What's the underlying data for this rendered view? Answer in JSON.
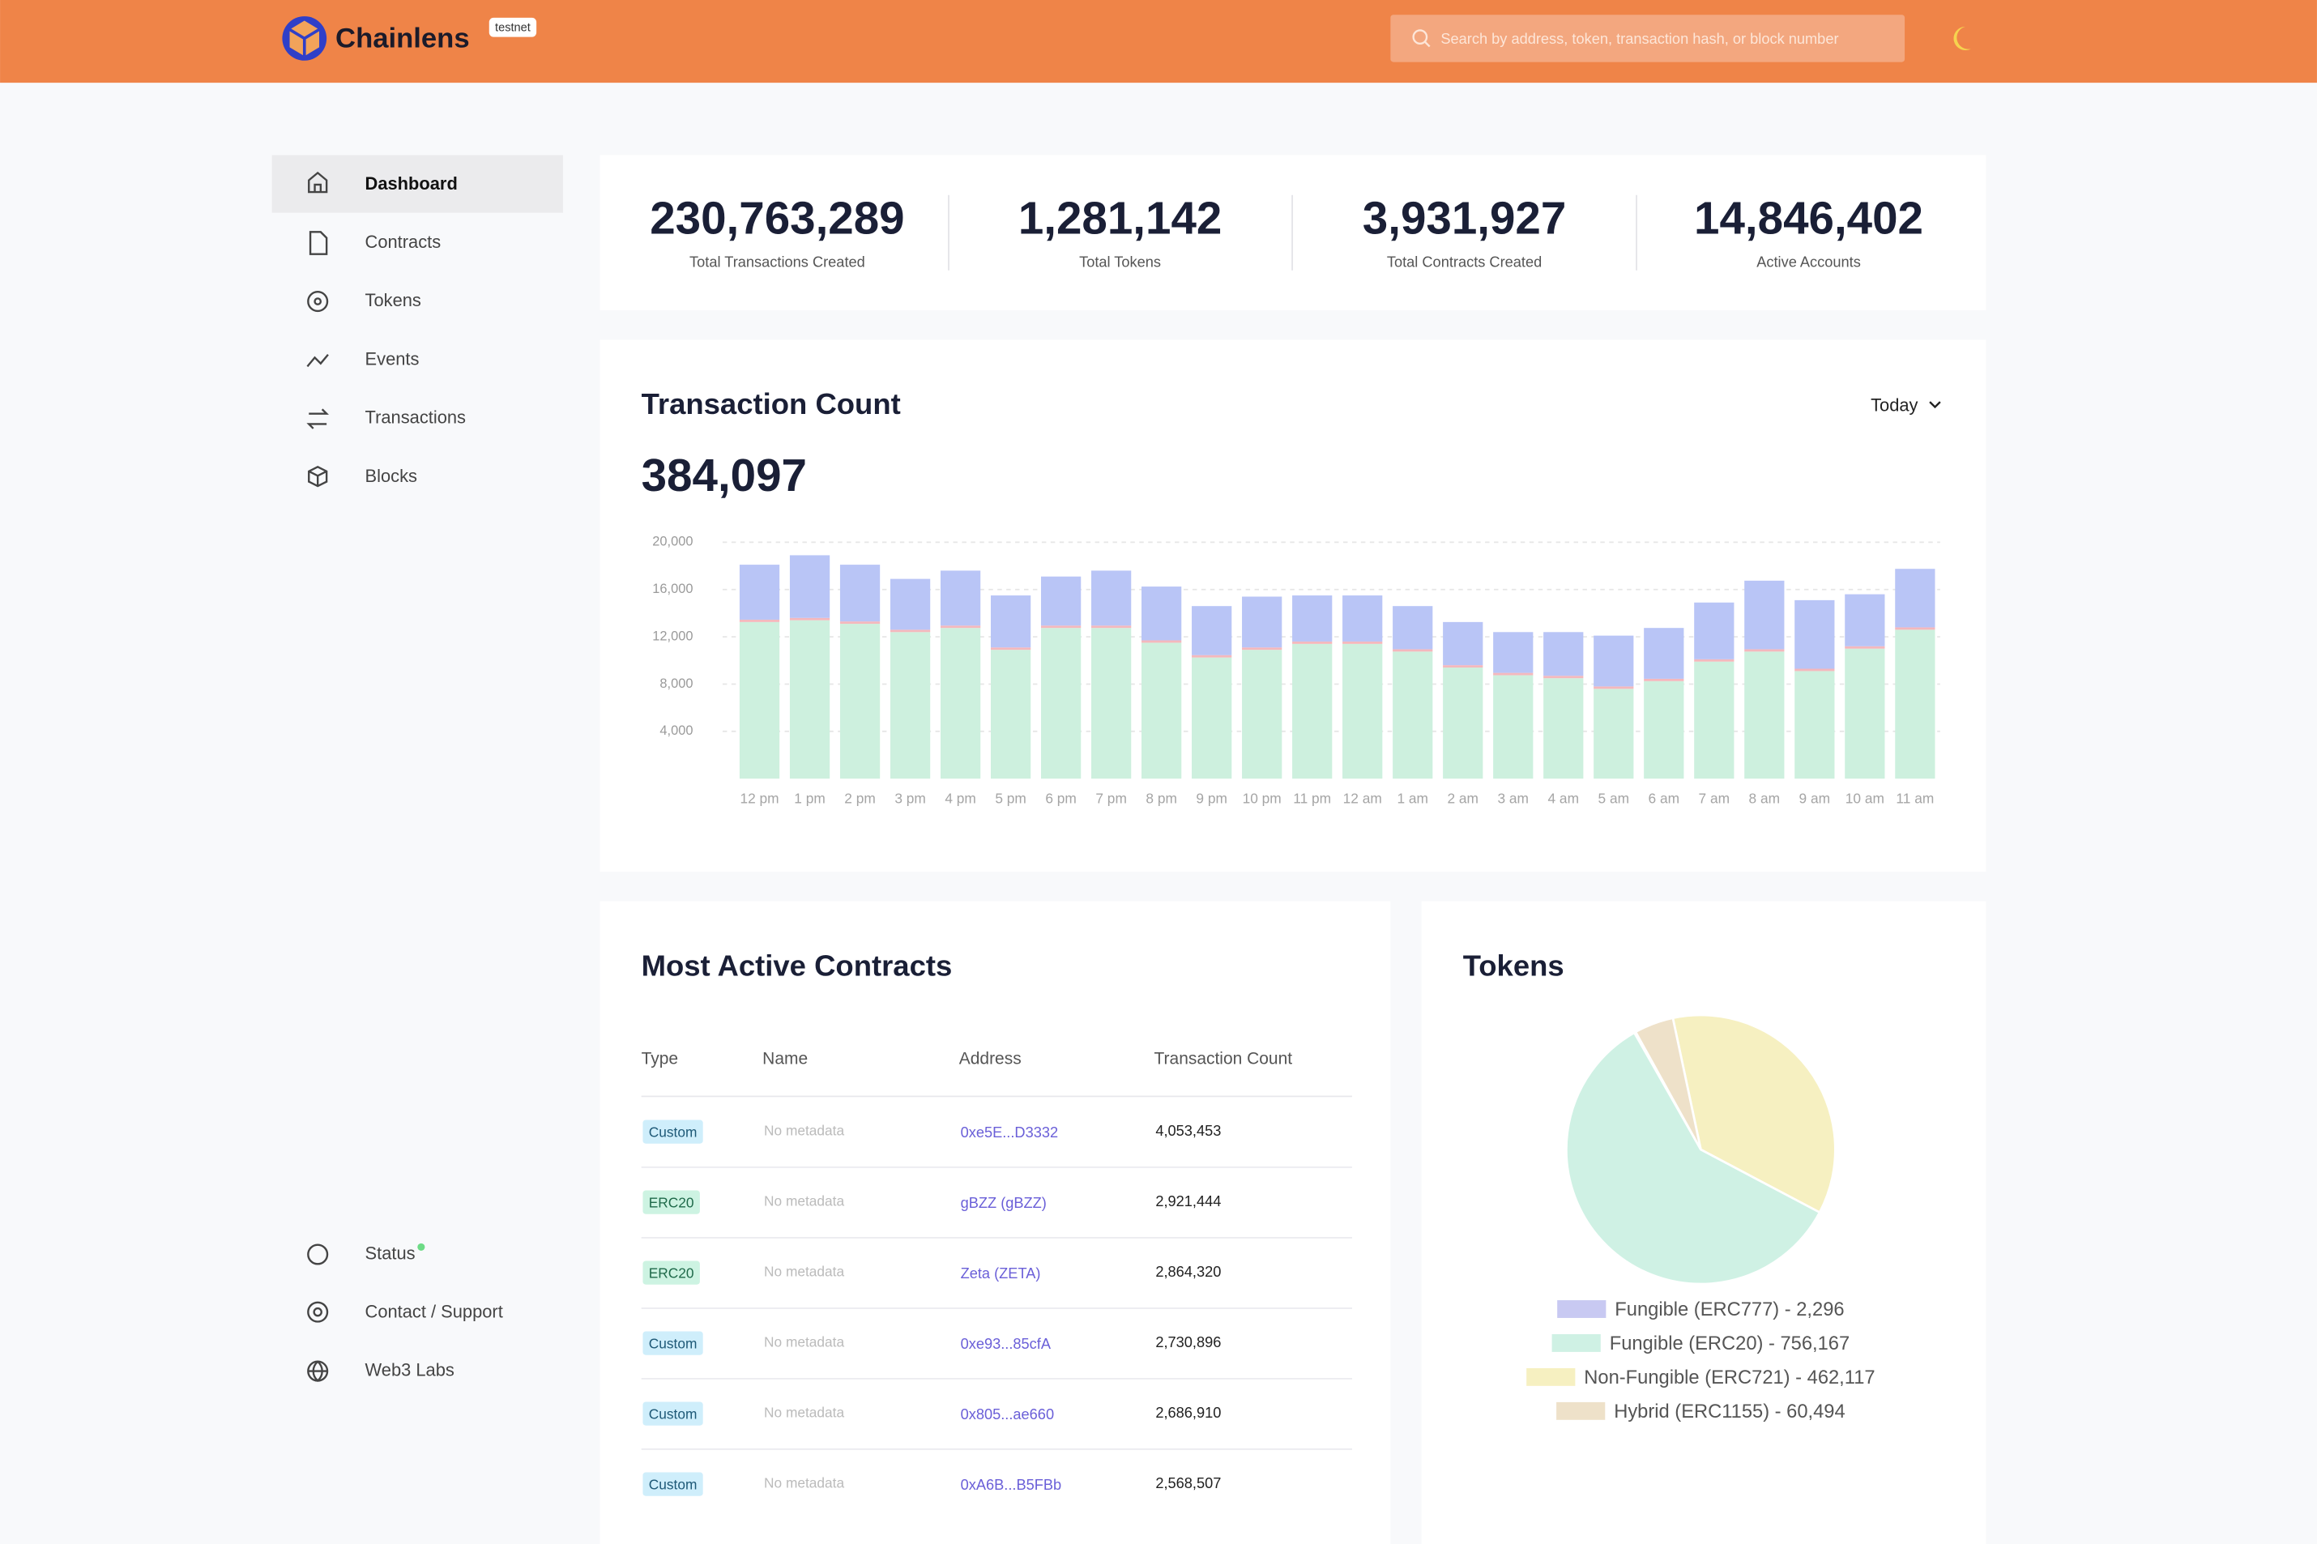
{
  "header": {
    "brand": "Chainlens",
    "badge": "testnet",
    "search_placeholder": "Search by address, token, transaction hash, or block number"
  },
  "sidebar": {
    "nav": [
      "Dashboard",
      "Contracts",
      "Tokens",
      "Events",
      "Transactions",
      "Blocks"
    ],
    "footer": [
      "Status",
      "Contact / Support",
      "Web3 Labs"
    ]
  },
  "stats": [
    {
      "value": "230,763,289",
      "label": "Total Transactions Created"
    },
    {
      "value": "1,281,142",
      "label": "Total Tokens"
    },
    {
      "value": "3,931,927",
      "label": "Total Contracts Created"
    },
    {
      "value": "14,846,402",
      "label": "Active Accounts"
    }
  ],
  "chart_controls": {
    "range": "Today"
  },
  "chart_data": [
    {
      "type": "bar",
      "title": "Transaction Count",
      "subtitle": "384,097",
      "stacked": true,
      "grid": true,
      "categories": [
        "12 pm",
        "1 pm",
        "2 pm",
        "3 pm",
        "4 pm",
        "5 pm",
        "6 pm",
        "7 pm",
        "8 pm",
        "9 pm",
        "10 pm",
        "11 pm",
        "12 am",
        "1 am",
        "2 am",
        "3 am",
        "4 am",
        "5 am",
        "6 am",
        "7 am",
        "8 am",
        "9 am",
        "10 am",
        "11 am"
      ],
      "series": [
        {
          "color": "#cdf0de",
          "values": [
            13250,
            13400,
            13100,
            12400,
            12750,
            10900,
            12750,
            12750,
            11500,
            10250,
            10900,
            11400,
            11400,
            10750,
            9400,
            8750,
            8500,
            7600,
            8250,
            9900,
            10750,
            9100,
            11000,
            12600
          ]
        },
        {
          "color": "#f4b8bd",
          "values": [
            200,
            200,
            200,
            200,
            200,
            200,
            200,
            200,
            200,
            200,
            200,
            200,
            200,
            200,
            200,
            200,
            200,
            200,
            200,
            200,
            200,
            200,
            200,
            200
          ]
        },
        {
          "color": "#b9c5f6",
          "values": [
            4650,
            5300,
            4800,
            4300,
            4650,
            4400,
            4150,
            4650,
            4550,
            4150,
            4300,
            3900,
            3900,
            3650,
            3650,
            3450,
            3700,
            4300,
            4300,
            4800,
            5800,
            5800,
            4400,
            4950
          ]
        }
      ],
      "ylim": [
        0,
        20000
      ],
      "yticks": [
        {
          "value": 4000,
          "label": "4,000"
        },
        {
          "value": 8000,
          "label": "8,000"
        },
        {
          "value": 12000,
          "label": "12,000"
        },
        {
          "value": 16000,
          "label": "16,000"
        },
        {
          "value": 20000,
          "label": "20,000"
        }
      ]
    },
    {
      "type": "pie",
      "title": "Tokens",
      "labels": [
        "Fungible (ERC777) - 2,296",
        "Fungible (ERC20) - 756,167",
        "Non-Fungible (ERC721) - 462,117",
        "Hybrid (ERC1155) - 60,494"
      ],
      "values": [
        2296,
        756167,
        462117,
        60494
      ],
      "colors": [
        "#c8c9f2",
        "#cff1e4",
        "#f6f0c1",
        "#eee1c9"
      ]
    }
  ],
  "contracts": {
    "title": "Most Active Contracts",
    "columns": [
      "Type",
      "Name",
      "Address",
      "Transaction Count"
    ],
    "rows": [
      [
        "Custom",
        "No metadata",
        "0xe5E...D3332",
        "4,053,453"
      ],
      [
        "ERC20",
        "No metadata",
        "gBZZ (gBZZ)",
        "2,921,444"
      ],
      [
        "ERC20",
        "No metadata",
        "Zeta (ZETA)",
        "2,864,320"
      ],
      [
        "Custom",
        "No metadata",
        "0xe93...85cfA",
        "2,730,896"
      ],
      [
        "Custom",
        "No metadata",
        "0x805...ae660",
        "2,686,910"
      ],
      [
        "Custom",
        "No metadata",
        "0xA6B...B5FBb",
        "2,568,507"
      ]
    ]
  }
}
